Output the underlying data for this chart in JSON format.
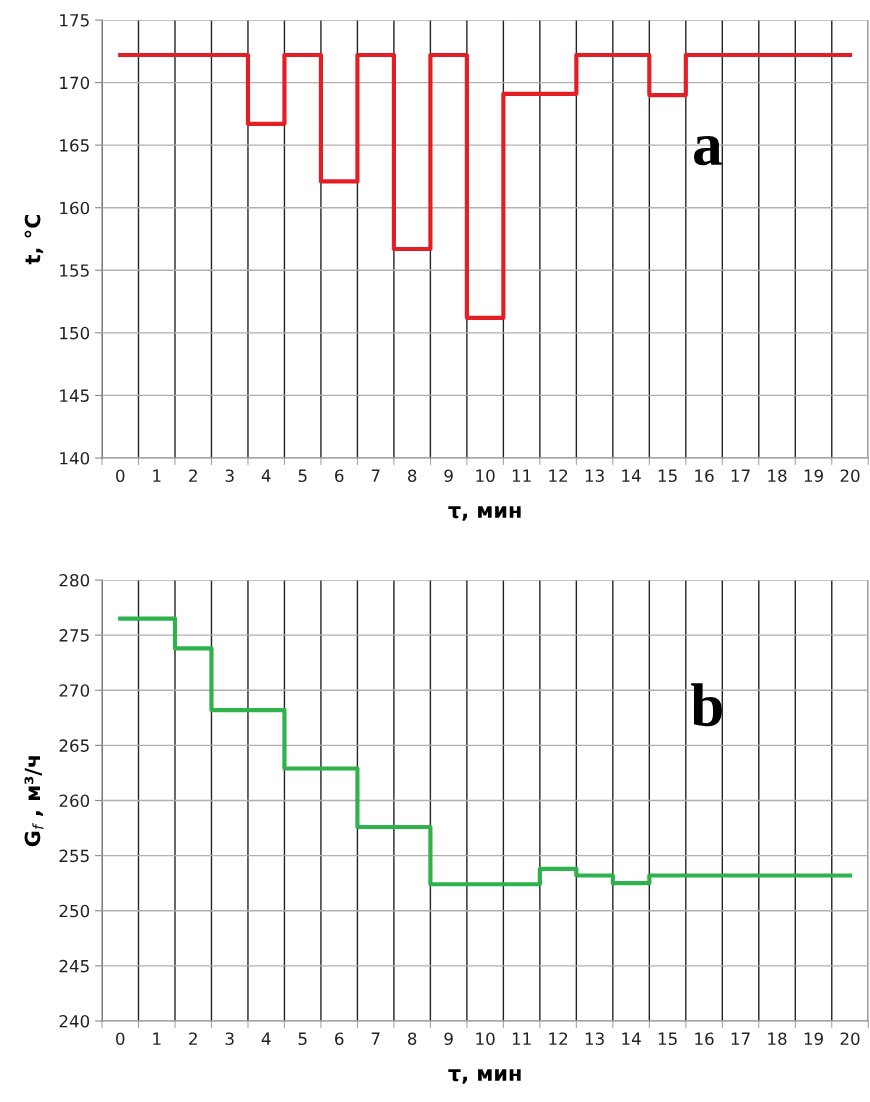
{
  "chart_data": [
    {
      "type": "step",
      "xlabel": "τ, мин",
      "ylabel": "t, °C",
      "annotations": [
        "a"
      ],
      "categories": [
        "0",
        "1",
        "2",
        "3",
        "4",
        "5",
        "6",
        "7",
        "8",
        "9",
        "10",
        "11",
        "12",
        "13",
        "14",
        "15",
        "16",
        "17",
        "18",
        "19",
        "20"
      ],
      "series": [
        {
          "color": "#e31e24",
          "values": [
            172.2,
            172.2,
            172.2,
            172.2,
            166.7,
            172.2,
            162.1,
            172.2,
            156.7,
            172.2,
            151.2,
            169.1,
            169.1,
            172.2,
            172.2,
            169.0,
            172.2,
            172.2,
            172.2,
            172.2,
            172.2
          ]
        }
      ],
      "ylim": [
        140,
        175
      ],
      "yticks": [
        140,
        145,
        150,
        155,
        160,
        165,
        170,
        175
      ],
      "grid": true,
      "marker": "none",
      "line_style": "solid"
    },
    {
      "type": "step",
      "xlabel": "τ, мин",
      "ylabel": "G$_{f}$ , м³/ч",
      "annotations": [
        "b"
      ],
      "categories": [
        "0",
        "1",
        "2",
        "3",
        "4",
        "5",
        "6",
        "7",
        "8",
        "9",
        "10",
        "11",
        "12",
        "13",
        "14",
        "15",
        "16",
        "17",
        "18",
        "19",
        "20"
      ],
      "series": [
        {
          "color": "#2eb24b",
          "values": [
            276.5,
            276.5,
            273.8,
            268.2,
            268.2,
            262.9,
            262.9,
            257.6,
            257.6,
            252.4,
            252.4,
            252.4,
            253.8,
            253.2,
            252.5,
            253.2,
            253.2,
            253.2,
            253.2,
            253.2,
            253.2
          ]
        }
      ],
      "ylim": [
        240,
        280
      ],
      "yticks": [
        240,
        245,
        250,
        255,
        260,
        265,
        270,
        275,
        280
      ],
      "grid": true,
      "marker": "none",
      "line_style": "solid"
    }
  ]
}
